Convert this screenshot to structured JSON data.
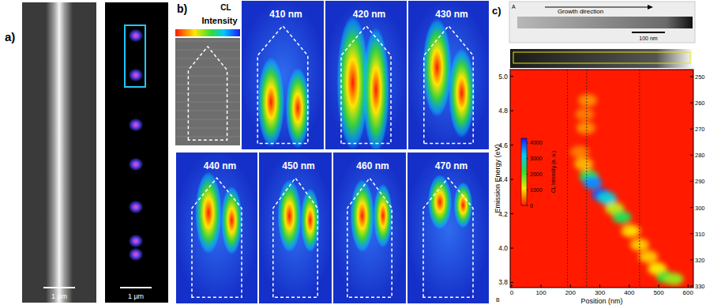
{
  "panel_a": {
    "label": "a)",
    "scale_bars": [
      "1 µm",
      "1 µm"
    ]
  },
  "panel_b": {
    "label": "b)",
    "colorbar_title": [
      "CL",
      "Intensity"
    ],
    "wavelength_maps": [
      "410 nm",
      "420 nm",
      "430 nm",
      "440 nm",
      "450 nm",
      "460 nm",
      "470 nm"
    ]
  },
  "chart_data": {
    "type": "heatmap",
    "panel_label": "c)",
    "inset_label": "A",
    "inset_annotation": "Growth direction",
    "inset_scale_bar": "100 nm",
    "plot_label": "B",
    "x_label": "Position (nm)",
    "y_label": "Emission Energy (eV)",
    "xlim": [
      -5,
      618
    ],
    "xticks": [
      0,
      100,
      200,
      300,
      400,
      500,
      600
    ],
    "ylim": [
      3.77,
      5.04
    ],
    "yticks": [
      3.8,
      {
        "value": 4,
        "label": "4.0"
      },
      4.2,
      4.4,
      4.6,
      4.8,
      {
        "value": 5,
        "label": "5.0"
      }
    ],
    "y2lim": [
      247.3,
      330.6
    ],
    "y2ticks": [
      250,
      260,
      270,
      280,
      290,
      300,
      310,
      320,
      330
    ],
    "reference_lines_x": [
      190,
      255,
      435
    ],
    "cells": [
      {
        "x": 258,
        "y": 4.86,
        "value": 600
      },
      {
        "x": 248,
        "y": 4.78,
        "value": 500
      },
      {
        "x": 252,
        "y": 4.7,
        "value": 600
      },
      {
        "x": 232,
        "y": 4.56,
        "value": 500
      },
      {
        "x": 245,
        "y": 4.49,
        "value": 800
      },
      {
        "x": 262,
        "y": 4.42,
        "value": 2200
      },
      {
        "x": 275,
        "y": 4.38,
        "value": 3600
      },
      {
        "x": 305,
        "y": 4.31,
        "value": 3900
      },
      {
        "x": 325,
        "y": 4.29,
        "value": 3000
      },
      {
        "x": 350,
        "y": 4.23,
        "value": 1400
      },
      {
        "x": 375,
        "y": 4.18,
        "value": 2300
      },
      {
        "x": 405,
        "y": 4.1,
        "value": 1000
      },
      {
        "x": 435,
        "y": 4.02,
        "value": 900
      },
      {
        "x": 465,
        "y": 3.95,
        "value": 900
      },
      {
        "x": 495,
        "y": 3.88,
        "value": 1100
      },
      {
        "x": 525,
        "y": 3.83,
        "value": 2100
      },
      {
        "x": 552,
        "y": 3.82,
        "value": 1600
      }
    ],
    "colorbar": {
      "label": "CL Intensity (a. u.)",
      "lim": [
        0,
        4300
      ],
      "ticks": [
        0,
        1000,
        2000,
        3000,
        4000
      ],
      "colors": [
        "#ff1a00",
        "#ffe600",
        "#33dd33",
        "#00c8ff",
        "#1a1aff"
      ]
    }
  }
}
